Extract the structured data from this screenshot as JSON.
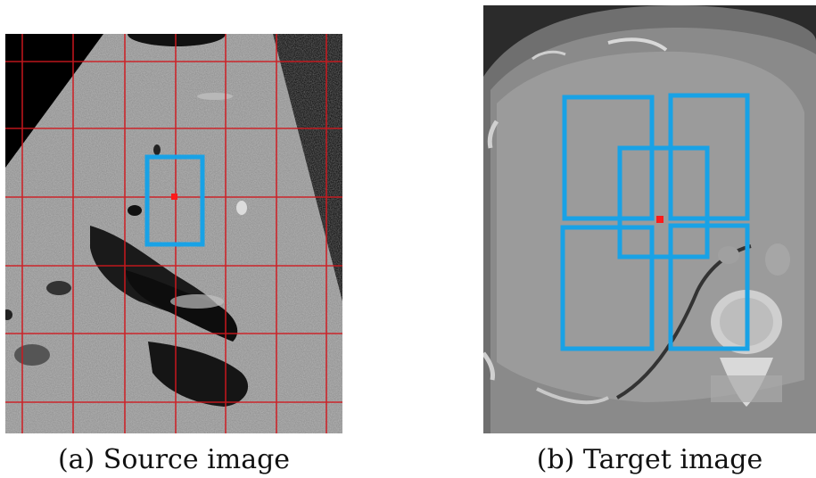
{
  "figure": {
    "panels": [
      {
        "caption": "(a) Source image"
      },
      {
        "caption": "(b) Target image"
      }
    ],
    "colors": {
      "grid_lines": "#d0181e",
      "boxes": "#18a2e6",
      "marker_point": "#ff1a1a",
      "ultrasound_background": "#000000",
      "ct_background": "#2b2b2b"
    }
  }
}
